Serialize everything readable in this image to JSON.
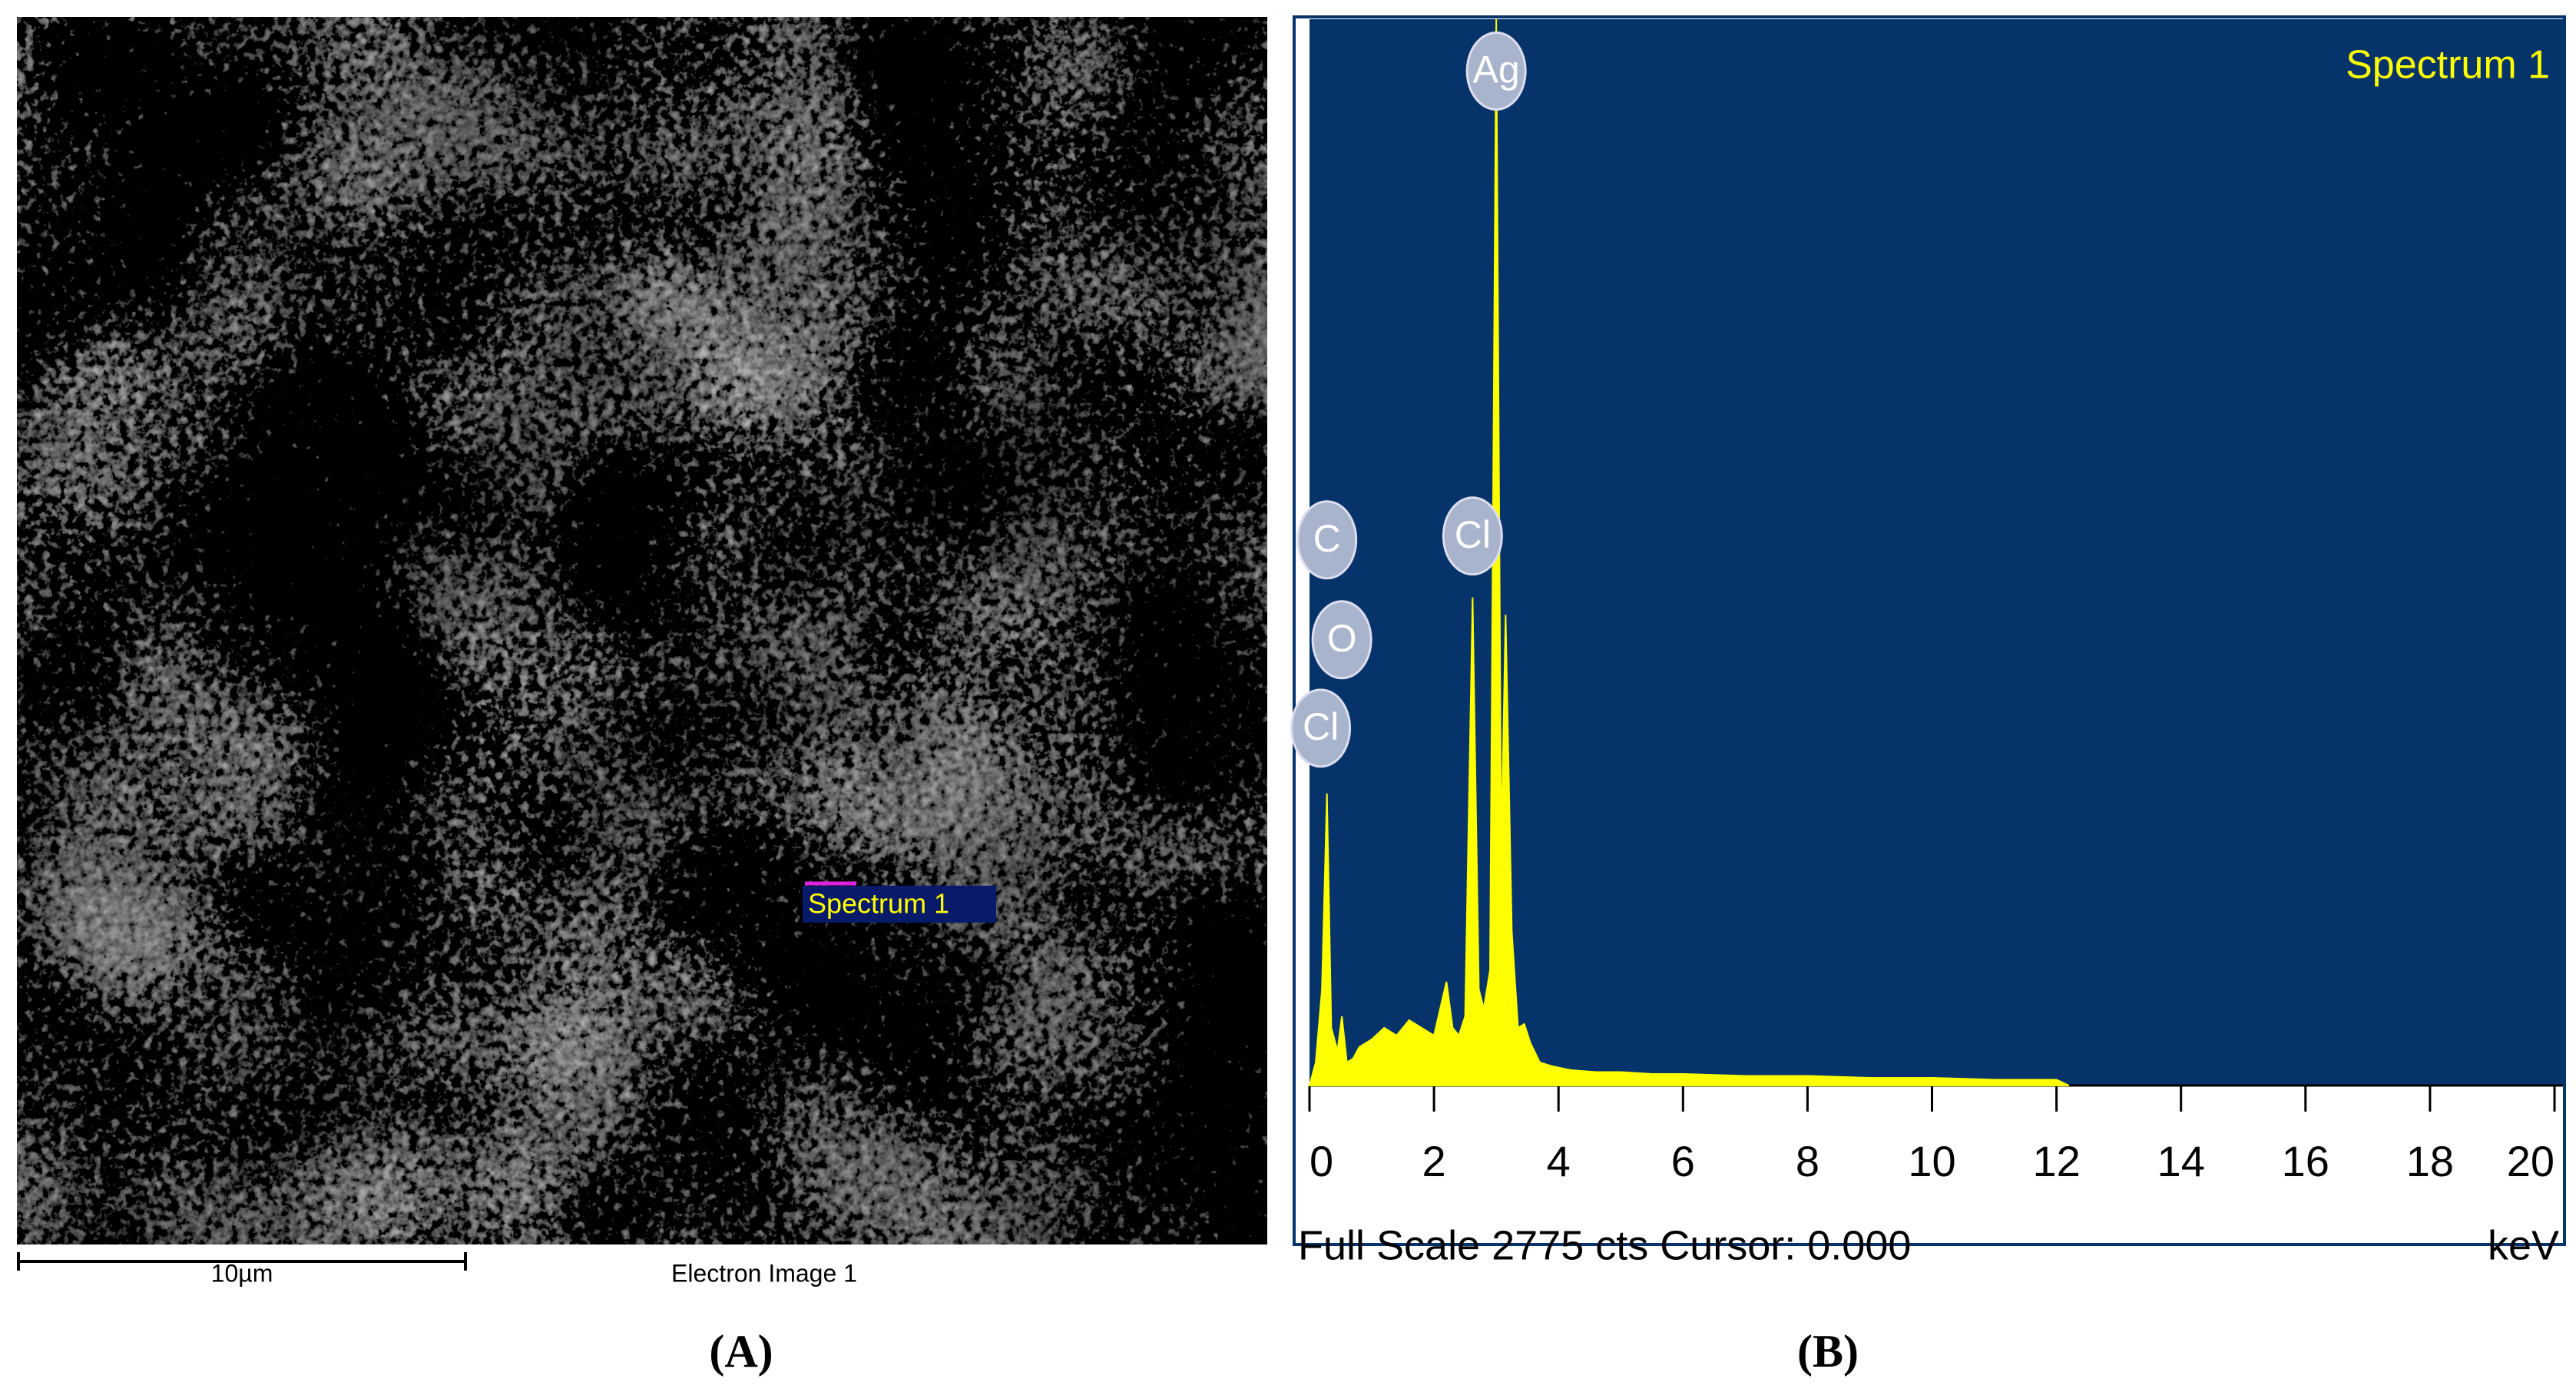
{
  "panel_a": {
    "scale_bar_label": "10µm",
    "image_label": "Electron Image 1",
    "marker_label": "Spectrum 1",
    "caption": "(A)"
  },
  "chart_data": {
    "type": "area",
    "title": "Spectrum 1",
    "footer": "Full Scale 2775 cts Cursor: 0.000",
    "xlabel": "keV",
    "caption": "(B)",
    "color": "#ffff00",
    "background": "#06336a",
    "x": [
      0,
      0.1,
      0.2,
      0.28,
      0.35,
      0.45,
      0.52,
      0.6,
      0.7,
      0.8,
      1.0,
      1.2,
      1.4,
      1.6,
      1.8,
      2.0,
      2.1,
      2.2,
      2.3,
      2.4,
      2.5,
      2.62,
      2.72,
      2.8,
      2.9,
      3.0,
      3.08,
      3.15,
      3.25,
      3.35,
      3.45,
      3.55,
      3.7,
      3.9,
      4.2,
      4.6,
      5.0,
      5.5,
      6.0,
      7.0,
      8.0,
      9.0,
      10.0,
      11.0,
      12.0,
      12.2
    ],
    "values": [
      0,
      60,
      250,
      760,
      150,
      90,
      180,
      60,
      70,
      100,
      120,
      150,
      130,
      170,
      150,
      130,
      200,
      270,
      150,
      130,
      180,
      1270,
      250,
      200,
      300,
      2775,
      600,
      1225,
      400,
      150,
      160,
      110,
      60,
      50,
      40,
      35,
      35,
      30,
      30,
      25,
      25,
      20,
      20,
      15,
      15,
      0
    ],
    "xlim": [
      0,
      20
    ],
    "xticks": [
      0,
      2,
      4,
      6,
      8,
      10,
      12,
      14,
      16,
      18,
      20
    ],
    "ylim": [
      0,
      2775
    ],
    "peak_labels": [
      {
        "label": "Ag",
        "energy": 3.0,
        "counts": 2640
      },
      {
        "label": "Cl",
        "energy": 2.62,
        "counts": 1430
      },
      {
        "label": "C",
        "energy": 0.28,
        "counts": 1420
      },
      {
        "label": "O",
        "energy": 0.52,
        "counts": 1160
      },
      {
        "label": "Cl",
        "energy": 0.18,
        "counts": 930
      }
    ]
  }
}
